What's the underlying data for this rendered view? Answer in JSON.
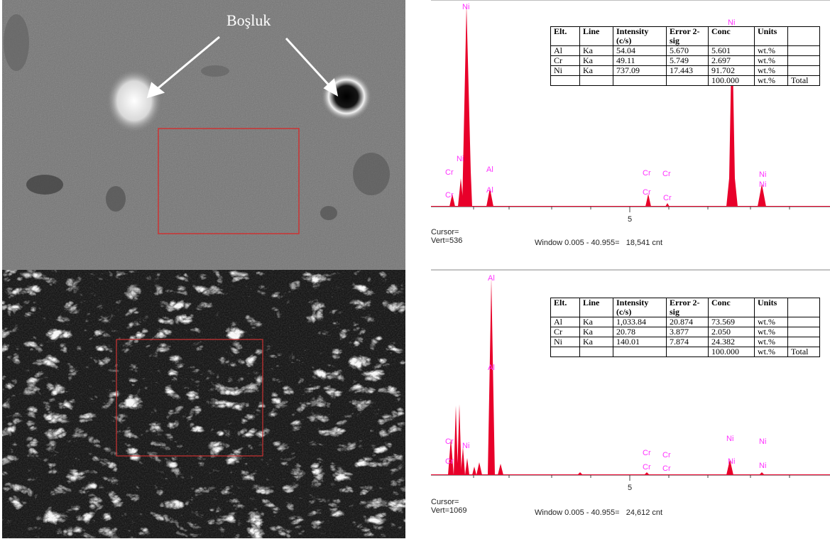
{
  "annotation": {
    "label": "Boşluk"
  },
  "spectrum_top": {
    "peak_labels": [
      "Ni",
      "Ni",
      "Ni",
      "Cr",
      "Cr",
      "Al",
      "Al",
      "Cr",
      "Cr",
      "Cr",
      "Cr",
      "Ni",
      "Ni"
    ],
    "axis_tick": "5",
    "cursor_label": "Cursor=",
    "vert_label": "Vert=536",
    "window_label": "Window 0.005 - 40.955=   18,541 cnt",
    "table": {
      "headers": [
        "Elt.",
        "Line",
        "Intensity (c/s)",
        "Error 2-sig",
        "Conc",
        "Units",
        ""
      ],
      "rows": [
        [
          "Al",
          "Ka",
          "54.04",
          "5.670",
          "5.601",
          "wt.%",
          ""
        ],
        [
          "Cr",
          "Ka",
          "49.11",
          "5.749",
          "2.697",
          "wt.%",
          ""
        ],
        [
          "Ni",
          "Ka",
          "737.09",
          "17.443",
          "91.702",
          "wt.%",
          ""
        ],
        [
          "",
          "",
          "",
          "",
          "100.000",
          "wt.%",
          "Total"
        ]
      ]
    }
  },
  "spectrum_bottom": {
    "peak_labels": [
      "Al",
      "Al",
      "Cr",
      "Ni",
      "Cr",
      "Cr",
      "Cr",
      "Cr",
      "Ni",
      "Ni",
      "Ni",
      "Ni"
    ],
    "axis_tick": "5",
    "cursor_label": "Cursor=",
    "vert_label": "Vert=1069",
    "window_label": "Window 0.005 - 40.955=   24,612 cnt",
    "table": {
      "headers": [
        "Elt.",
        "Line",
        "Intensity (c/s)",
        "Error 2-sig",
        "Conc",
        "Units",
        ""
      ],
      "rows": [
        [
          "Al",
          "Ka",
          "1,033.84",
          "20.874",
          "73.569",
          "wt.%",
          ""
        ],
        [
          "Cr",
          "Ka",
          "20.78",
          "3.877",
          "2.050",
          "wt.%",
          ""
        ],
        [
          "Ni",
          "Ka",
          "140.01",
          "7.874",
          "24.382",
          "wt.%",
          ""
        ],
        [
          "",
          "",
          "",
          "",
          "100.000",
          "wt.%",
          "Total"
        ]
      ]
    }
  },
  "colors": {
    "peak": "#e8002a",
    "peak_label": "#ff33ff",
    "frame": "#cc3333"
  }
}
